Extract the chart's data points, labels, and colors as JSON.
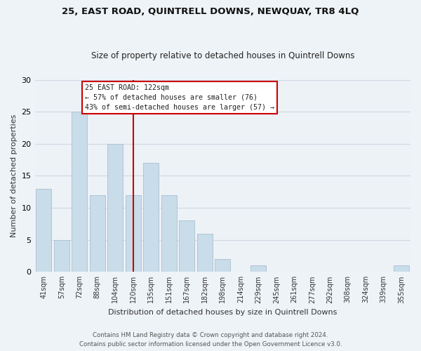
{
  "title1": "25, EAST ROAD, QUINTRELL DOWNS, NEWQUAY, TR8 4LQ",
  "title2": "Size of property relative to detached houses in Quintrell Downs",
  "xlabel": "Distribution of detached houses by size in Quintrell Downs",
  "ylabel": "Number of detached properties",
  "categories": [
    "41sqm",
    "57sqm",
    "72sqm",
    "88sqm",
    "104sqm",
    "120sqm",
    "135sqm",
    "151sqm",
    "167sqm",
    "182sqm",
    "198sqm",
    "214sqm",
    "229sqm",
    "245sqm",
    "261sqm",
    "277sqm",
    "292sqm",
    "308sqm",
    "324sqm",
    "339sqm",
    "355sqm"
  ],
  "values": [
    13,
    5,
    25,
    12,
    20,
    12,
    17,
    12,
    8,
    6,
    2,
    0,
    1,
    0,
    0,
    0,
    0,
    0,
    0,
    0,
    1
  ],
  "bar_color": "#c9dcea",
  "bar_edge_color": "#aabfcf",
  "reference_line_x": 5.0,
  "reference_label": "25 EAST ROAD: 122sqm",
  "annotation_line1": "← 57% of detached houses are smaller (76)",
  "annotation_line2": "43% of semi-detached houses are larger (57) →",
  "annotation_box_color": "#ffffff",
  "annotation_box_edge": "#cc0000",
  "ref_line_color": "#cc0000",
  "ylim": [
    0,
    30
  ],
  "grid_color": "#cdd8e3",
  "background_color": "#edf2f7",
  "footer1": "Contains HM Land Registry data © Crown copyright and database right 2024.",
  "footer2": "Contains public sector information licensed under the Open Government Licence v3.0."
}
